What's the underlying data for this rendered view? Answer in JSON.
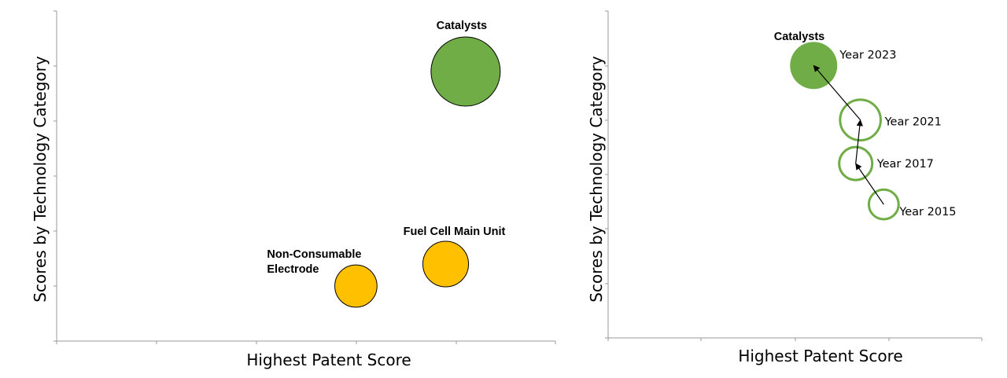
{
  "colors": {
    "green": "#70ad47",
    "orange": "#ffc000",
    "axis": "#9a9a9a",
    "stroke": "#000000",
    "arrow": "#000000"
  },
  "chart_data": [
    {
      "type": "scatter",
      "subtype": "bubble",
      "title": "",
      "xlabel": "Highest Patent Score",
      "ylabel": "Scores by Technology Category",
      "xlim": [
        0,
        5
      ],
      "ylim": [
        0,
        6
      ],
      "grid": false,
      "tick_labels": false,
      "points": [
        {
          "label": "Catalysts",
          "x": 4.1,
          "y": 4.9,
          "size": 1.0,
          "color": "#70ad47",
          "filled": true
        },
        {
          "label": "Fuel Cell Main Unit",
          "x": 3.9,
          "y": 1.4,
          "size": 0.66,
          "color": "#ffc000",
          "filled": true
        },
        {
          "label": "Non-Consumable Electrode",
          "x": 3.0,
          "y": 1.0,
          "size": 0.61,
          "color": "#ffc000",
          "filled": true
        }
      ]
    },
    {
      "type": "scatter",
      "subtype": "bubble-trajectory",
      "title": "",
      "xlabel": "Highest Patent Score",
      "ylabel": "Scores by Technology Category",
      "xlim": [
        0,
        4
      ],
      "ylim": [
        0,
        6
      ],
      "grid": false,
      "tick_labels": false,
      "series_label": "Catalysts",
      "points": [
        {
          "label": "Year 2015",
          "x": 2.95,
          "y": 2.45,
          "size": 0.63,
          "color": "#70ad47",
          "filled": false
        },
        {
          "label": "Year 2017",
          "x": 2.65,
          "y": 3.2,
          "size": 0.7,
          "color": "#70ad47",
          "filled": false
        },
        {
          "label": "Year 2021",
          "x": 2.7,
          "y": 4.0,
          "size": 0.86,
          "color": "#70ad47",
          "filled": false
        },
        {
          "label": "Year 2023",
          "x": 2.2,
          "y": 5.0,
          "size": 1.0,
          "color": "#70ad47",
          "filled": true
        }
      ]
    }
  ]
}
